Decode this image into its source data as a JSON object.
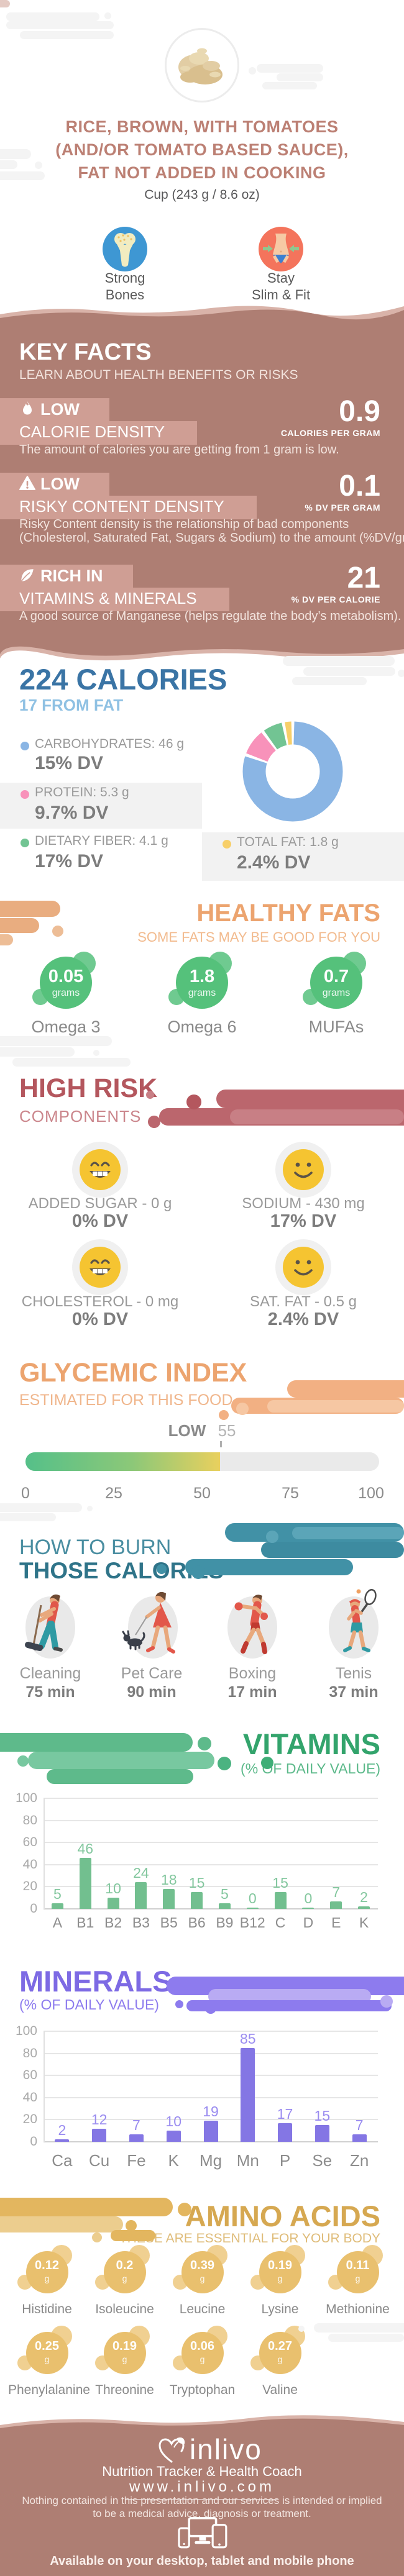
{
  "palette": {
    "mauve": "#ae7e73",
    "mauve_light": "#cf9e94",
    "wave_light": "#d9b3a9",
    "blue_title": "#3a74a5",
    "blue_light": "#8fc1e3",
    "carbs": "#8ab5e4",
    "protein": "#f892ba",
    "fiber": "#72c493",
    "fat": "#f7cf69",
    "healthy_green": "#55c17b",
    "risk_maroon": "#b4575e",
    "glycemic_orange": "#eca46f",
    "burn_teal": "#2f7489",
    "vitamins_green": "#33a46c",
    "minerals_purple": "#7d6ae4",
    "amino_gold": "#d6a851",
    "smiley_yellow": "#f5c431",
    "slider_green": "#55c089",
    "slider_yellow": "#e9d05e"
  },
  "header": {
    "title_line1": "RICE, BROWN, WITH TOMATOES",
    "title_line2": "(AND/OR TOMATO BASED SAUCE),",
    "title_line3": "FAT NOT ADDED IN COOKING",
    "serving": "Cup (243 g / 8.6 oz)",
    "benefit1_line1": "Strong",
    "benefit1_line2": "Bones",
    "benefit2_line1": "Stay",
    "benefit2_line2": "Slim & Fit"
  },
  "key_facts": {
    "title": "KEY FACTS",
    "subtitle": "LEARN ABOUT HEALTH BENEFITS OR RISKS",
    "items": [
      {
        "icon": "flame",
        "badge1": "LOW",
        "badge2": "CALORIE DENSITY",
        "value": "0.9",
        "unit": "CALORIES PER GRAM",
        "desc": [
          "The amount of calories you are getting from 1 gram is low."
        ]
      },
      {
        "icon": "warning",
        "badge1": "LOW",
        "badge2": "RISKY CONTENT DENSITY",
        "value": "0.1",
        "unit": "% DV PER GRAM",
        "desc": [
          "Risky Content density is the relationship of bad components",
          "(Cholesterol, Saturated Fat, Sugars & Sodium) to the amount (%DV/gr)."
        ]
      },
      {
        "icon": "leaf",
        "badge1": "RICH IN",
        "badge2": "VITAMINS & MINERALS",
        "value": "21",
        "unit": "% DV PER CALORIE",
        "desc": [
          "A good source of Manganese (helps regulate the body’s metabolism)."
        ]
      }
    ]
  },
  "calories": {
    "title": "224 CALORIES",
    "subtitle": "17 FROM FAT",
    "legend": [
      {
        "name": "CARBOHYDRATES: 46 g",
        "dv": "15% DV",
        "color": "#8ab5e4"
      },
      {
        "name": "PROTEIN: 5.3 g",
        "dv": "9.7% DV",
        "color": "#f892ba"
      },
      {
        "name": "DIETARY FIBER: 4.1 g",
        "dv": "17% DV",
        "color": "#72c493"
      },
      {
        "name": "TOTAL FAT: 1.8 g",
        "dv": "2.4% DV",
        "color": "#f7cf69"
      }
    ],
    "donut": {
      "percents": [
        80.4,
        9.3,
        7.2,
        3.1
      ],
      "colors": [
        "#8ab5e4",
        "#f892ba",
        "#72c493",
        "#f7cf69"
      ]
    }
  },
  "healthy_fats": {
    "title": "HEALTHY FATS",
    "subtitle": "SOME FATS MAY BE GOOD FOR YOU",
    "items": [
      {
        "value": "0.05",
        "unit": "grams",
        "label": "Omega 3"
      },
      {
        "value": "1.8",
        "unit": "grams",
        "label": "Omega 6"
      },
      {
        "value": "0.7",
        "unit": "grams",
        "label": "MUFAs"
      }
    ]
  },
  "high_risk": {
    "title": "HIGH RISK",
    "subtitle": "COMPONENTS",
    "items": [
      {
        "label": "ADDED SUGAR - 0 g",
        "dv": "0% DV",
        "mood": "grin"
      },
      {
        "label": "SODIUM - 430 mg",
        "dv": "17% DV",
        "mood": "smile"
      },
      {
        "label": "CHOLESTEROL - 0 mg",
        "dv": "0% DV",
        "mood": "grin"
      },
      {
        "label": "SAT. FAT - 0.5 g",
        "dv": "2.4% DV",
        "mood": "smile"
      }
    ]
  },
  "glycemic": {
    "title": "GLYCEMIC INDEX",
    "subtitle": "ESTIMATED FOR THIS FOOD",
    "level": "LOW",
    "value": 55,
    "min": 0,
    "max": 100,
    "scale": [
      "0",
      "25",
      "50",
      "75",
      "100"
    ]
  },
  "burn": {
    "title_line1": "HOW TO BURN",
    "title_line2": "THOSE CALORIES",
    "activities": [
      {
        "name": "Cleaning",
        "minutes": "75 min"
      },
      {
        "name": "Pet Care",
        "minutes": "90 min"
      },
      {
        "name": "Boxing",
        "minutes": "17 min"
      },
      {
        "name": "Tenis",
        "minutes": "37 min"
      }
    ]
  },
  "chart_data": [
    {
      "type": "bar",
      "title": "VITAMINS",
      "subtitle": "(% OF DAILY VALUE)",
      "categories": [
        "A",
        "B1",
        "B2",
        "B3",
        "B5",
        "B6",
        "B9",
        "B12",
        "C",
        "D",
        "E",
        "K"
      ],
      "values": [
        5,
        46,
        10,
        24,
        18,
        15,
        5,
        0,
        15,
        0,
        7,
        2
      ],
      "xlabel": "",
      "ylabel": "",
      "ylim": [
        0,
        100
      ],
      "yticks": [
        0,
        20,
        40,
        60,
        80,
        100
      ],
      "grid": true,
      "legend_position": "none",
      "bar_color": "#72bf8f",
      "value_label_color": "#83c79e"
    },
    {
      "type": "bar",
      "title": "MINERALS",
      "subtitle": "(% OF DAILY VALUE)",
      "categories": [
        "Ca",
        "Cu",
        "Fe",
        "K",
        "Mg",
        "Mn",
        "P",
        "Se",
        "Zn"
      ],
      "values": [
        2,
        12,
        7,
        10,
        19,
        85,
        17,
        15,
        7
      ],
      "xlabel": "",
      "ylabel": "",
      "ylim": [
        0,
        100
      ],
      "yticks": [
        0,
        20,
        40,
        60,
        80,
        100
      ],
      "grid": true,
      "legend_position": "none",
      "bar_color": "#8476e4",
      "value_label_color": "#9a8cf0"
    }
  ],
  "amino": {
    "title": "AMINO ACIDS",
    "subtitle": "THESE ARE ESSENTIAL FOR YOUR BODY",
    "unit": "g",
    "items": [
      {
        "name": "Histidine",
        "value": "0.12"
      },
      {
        "name": "Isoleucine",
        "value": "0.2"
      },
      {
        "name": "Leucine",
        "value": "0.39"
      },
      {
        "name": "Lysine",
        "value": "0.19"
      },
      {
        "name": "Methionine",
        "value": "0.11"
      },
      {
        "name": "Phenylalanine",
        "value": "0.25"
      },
      {
        "name": "Threonine",
        "value": "0.19"
      },
      {
        "name": "Tryptophan",
        "value": "0.06"
      },
      {
        "name": "Valine",
        "value": "0.27"
      }
    ]
  },
  "footer": {
    "brand": "inlivo",
    "tagline": "Nutrition Tracker & Health Coach",
    "url": "www.inlivo.com",
    "disclaimer_line1": "Nothing contained in this presentation and our services is intended or implied",
    "disclaimer_line2": "to be a medical advice, diagnosis or treatment.",
    "availability": "Available on your desktop, tablet and mobile phone"
  }
}
